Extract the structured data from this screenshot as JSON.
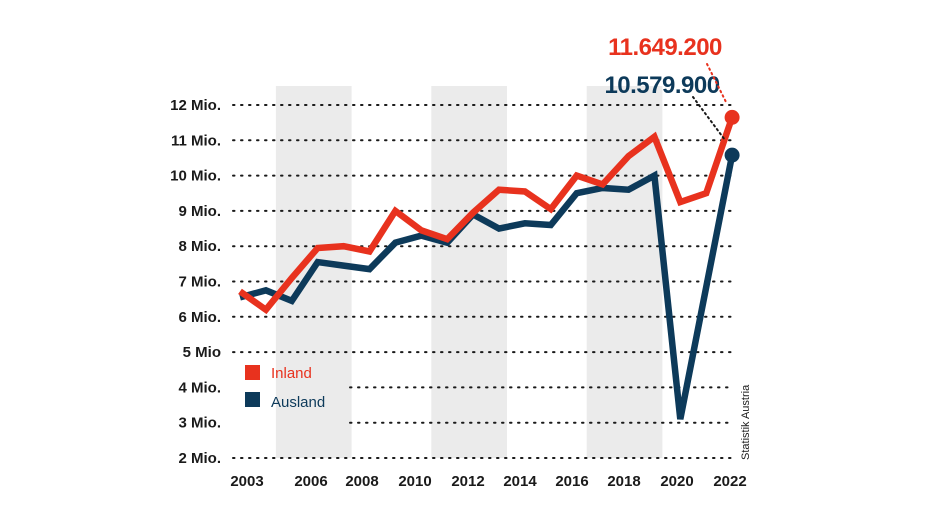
{
  "chart_data": {
    "type": "line",
    "x": [
      2003,
      2004,
      2005,
      2006,
      2007,
      2008,
      2009,
      2010,
      2011,
      2012,
      2013,
      2014,
      2015,
      2016,
      2017,
      2018,
      2019,
      2020,
      2021,
      2022
    ],
    "series": [
      {
        "name": "Inland",
        "color": "#e8321e",
        "values": [
          6.72,
          6.2,
          7.1,
          7.95,
          8.0,
          7.85,
          9.0,
          8.45,
          8.2,
          8.95,
          9.6,
          9.55,
          9.05,
          10.0,
          9.75,
          10.55,
          11.1,
          9.25,
          9.5,
          11.6492
        ]
      },
      {
        "name": "Ausland",
        "color": "#0d3a5a",
        "values": [
          6.55,
          6.75,
          6.45,
          7.55,
          7.45,
          7.35,
          8.1,
          8.3,
          8.1,
          8.9,
          8.5,
          8.65,
          8.6,
          9.5,
          9.65,
          9.6,
          10.0,
          3.1,
          6.84,
          10.5799
        ]
      }
    ],
    "unit": "Mio.",
    "yticks": [
      {
        "value": 12,
        "label": "12 Mio."
      },
      {
        "value": 11,
        "label": "11 Mio."
      },
      {
        "value": 10,
        "label": "10 Mio."
      },
      {
        "value": 9,
        "label": "9 Mio."
      },
      {
        "value": 8,
        "label": "8 Mio."
      },
      {
        "value": 7,
        "label": "7 Mio."
      },
      {
        "value": 6,
        "label": "6 Mio."
      },
      {
        "value": 5,
        "label": "5 Mio"
      },
      {
        "value": 4,
        "label": "4 Mio."
      },
      {
        "value": 3,
        "label": "3 Mio."
      },
      {
        "value": 2,
        "label": "2 Mio."
      }
    ],
    "xticks": [
      "2003",
      "2006",
      "2008",
      "2010",
      "2012",
      "2014",
      "2016",
      "2018",
      "2020",
      "2022"
    ],
    "ylim": [
      2,
      12
    ],
    "grid": "dotted horizontal",
    "shaded_bands": [
      [
        2004,
        2007
      ],
      [
        2010,
        2013
      ],
      [
        2016,
        2019
      ]
    ],
    "legend_placement": "bottom-left",
    "annotations": [
      {
        "text": "11.649.200",
        "series": "Inland",
        "color": "#e8321e"
      },
      {
        "text": "10.579.900",
        "series": "Ausland",
        "color": "#0d3a5a"
      }
    ],
    "source": "Statistik Austria"
  }
}
